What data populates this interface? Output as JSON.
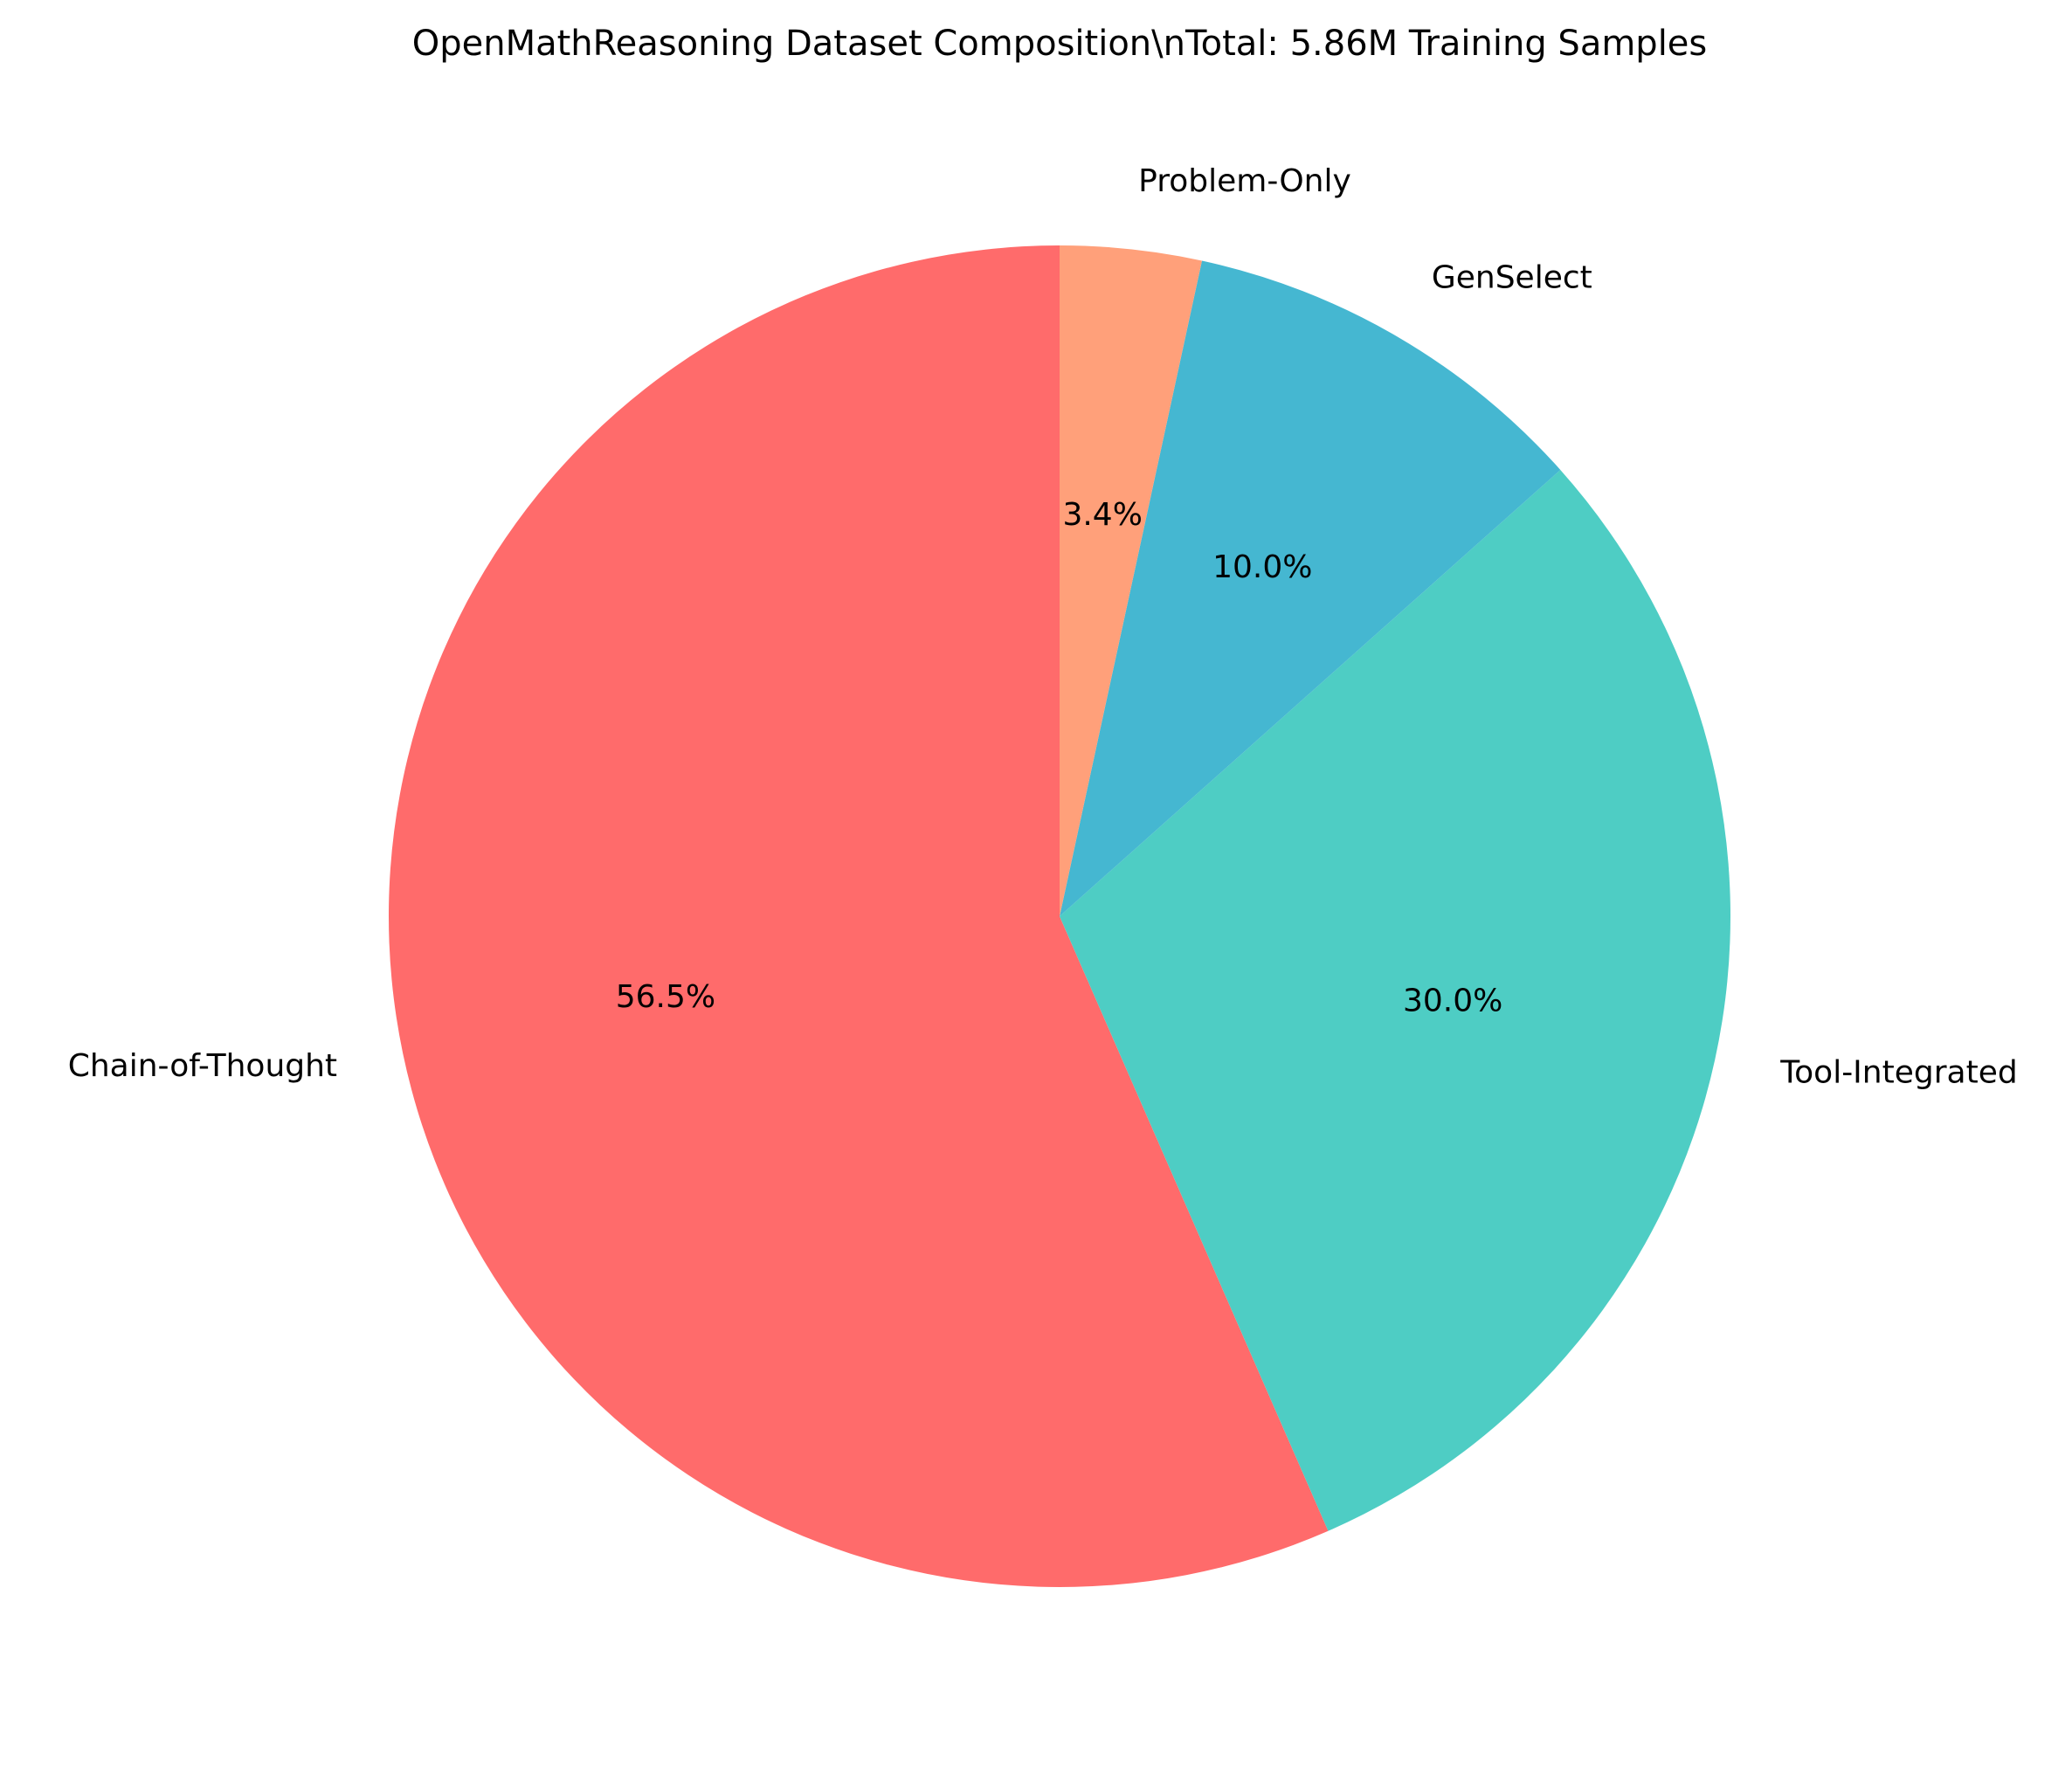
{
  "chart_data": {
    "type": "pie",
    "title": "OpenMathReasoning Dataset Composition\\nTotal: 5.86M Training Samples",
    "categories": [
      "Chain-of-Thought",
      "Tool-Integrated",
      "GenSelect",
      "Problem-Only"
    ],
    "values": [
      56.5,
      30.0,
      10.0,
      3.4
    ],
    "value_labels": [
      "56.5%",
      "30.0%",
      "10.0%",
      "3.4%"
    ],
    "colors": [
      "#ff6b6b",
      "#4ecdc4",
      "#45b7d1",
      "#ffa07a"
    ]
  }
}
